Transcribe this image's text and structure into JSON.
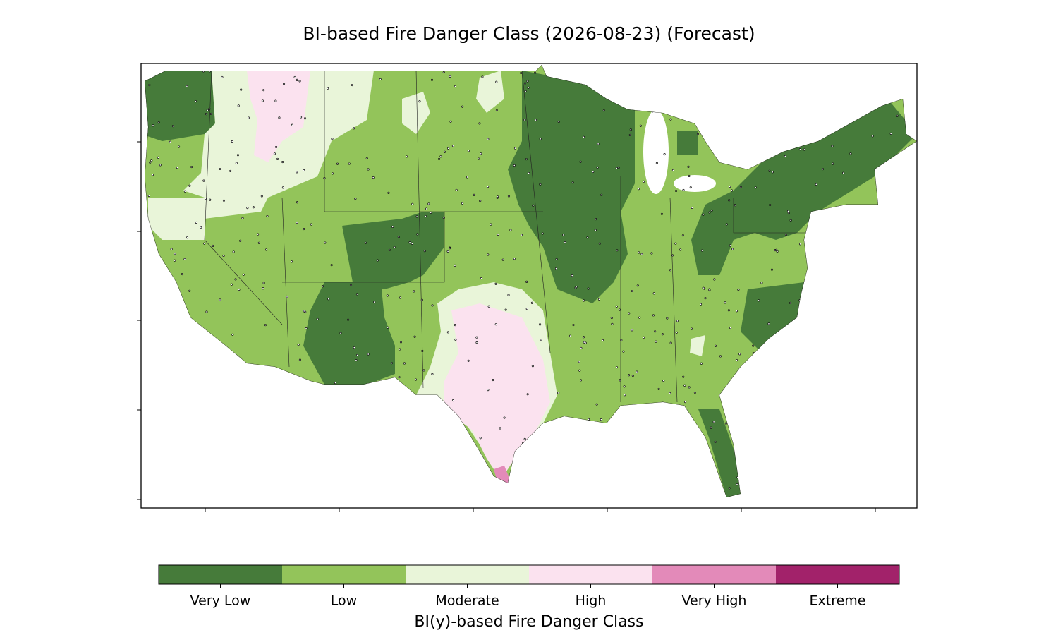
{
  "title": "BI-based Fire Danger Class (2026-08-23) (Forecast)",
  "legend": {
    "label": "BI(y)-based Fire Danger Class",
    "classes": [
      {
        "name": "Very Low",
        "color": "#467b3a"
      },
      {
        "name": "Low",
        "color": "#93c45a"
      },
      {
        "name": "Moderate",
        "color": "#e9f5d9"
      },
      {
        "name": "High",
        "color": "#fbe2ef"
      },
      {
        "name": "Very High",
        "color": "#e38ab9"
      },
      {
        "name": "Extreme",
        "color": "#a2226a"
      }
    ]
  }
}
